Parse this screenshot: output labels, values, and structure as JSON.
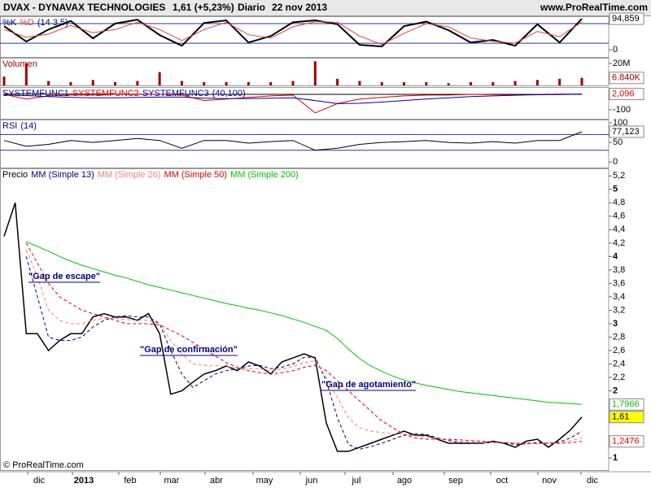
{
  "header": {
    "symbol": "DVAX - DYNAVAX TECHNOLOGIES",
    "quote": "1,61 (+5,23%)",
    "period": "Diario",
    "date": "22 nov 2013",
    "site": "www.ProRealTime.com"
  },
  "footer": "© ProRealTime.com",
  "chart_data": [
    {
      "type": "line",
      "params": "(14 3 5)",
      "ylim": [
        -22,
        100
      ],
      "yticks": [
        100,
        0
      ],
      "levels": [
        80,
        20
      ],
      "series": [
        {
          "name": "%K",
          "color": "#000000",
          "width": 2,
          "values": [
            72,
            25,
            62,
            88,
            35,
            80,
            92,
            45,
            12,
            82,
            90,
            22,
            42,
            84,
            90,
            78,
            15,
            10,
            72,
            86,
            60,
            22,
            30,
            12,
            78,
            22,
            94.859
          ],
          "last_label": "94,859"
        },
        {
          "name": "%D",
          "color": "#e04040",
          "width": 1,
          "values": [
            62,
            38,
            48,
            74,
            52,
            62,
            84,
            62,
            28,
            62,
            84,
            46,
            36,
            70,
            86,
            84,
            42,
            16,
            50,
            80,
            70,
            36,
            26,
            20,
            56,
            40,
            85
          ]
        }
      ]
    },
    {
      "type": "bar",
      "ylim": [
        0,
        24400000
      ],
      "yticks": [
        {
          "value": 20000000,
          "label": "20M"
        }
      ],
      "series": [
        {
          "name": "Volumen",
          "color": "#a00000",
          "values": [
            8000000,
            20000000,
            4000000,
            3000000,
            5000000,
            3000000,
            4000000,
            12000000,
            4000000,
            3000000,
            3000000,
            3000000,
            3000000,
            4000000,
            22000000,
            6000000,
            4000000,
            3000000,
            3000000,
            3000000,
            2000000,
            3000000,
            3000000,
            4000000,
            5000000,
            6000000,
            6840000
          ],
          "last_label": "6.840K"
        }
      ]
    },
    {
      "type": "line",
      "params": "(40,100)",
      "ylim": [
        -158,
        42
      ],
      "yticks": [
        0,
        -100
      ],
      "series": [
        {
          "name": "SYSTEMFUNC1",
          "color": "#000000",
          "width": 1,
          "values": [
            2,
            2,
            1,
            1,
            1,
            1,
            1,
            0,
            0,
            0,
            0,
            0,
            0,
            0,
            0,
            0,
            0,
            0,
            0,
            0,
            0,
            0,
            0,
            0,
            0,
            0,
            0
          ]
        },
        {
          "name": "SYSTEMFUNC2",
          "color": "#e00000",
          "width": 1,
          "values": [
            0,
            -30,
            -10,
            -5,
            -5,
            0,
            0,
            0,
            -5,
            -40,
            -30,
            -20,
            -10,
            -5,
            -120,
            -60,
            -30,
            -20,
            -10,
            -5,
            -5,
            0,
            -2,
            -5,
            0,
            2,
            2.096
          ],
          "last_label": "2,096"
        },
        {
          "name": "SYSTEMFUNC3",
          "color": "#0000a0",
          "width": 1,
          "values": [
            -5,
            -8,
            -15,
            -20,
            -22,
            -22,
            -20,
            -18,
            -18,
            -25,
            -28,
            -27,
            -25,
            -22,
            -40,
            -60,
            -58,
            -50,
            -40,
            -30,
            -22,
            -15,
            -10,
            -6,
            -3,
            -1,
            1
          ]
        }
      ]
    },
    {
      "type": "line",
      "params": "(14)",
      "ylim": [
        -14,
        106
      ],
      "yticks": [
        100,
        50,
        0
      ],
      "levels": [
        70,
        30
      ],
      "series": [
        {
          "name": "RSI",
          "color": "#000000",
          "width": 1,
          "values": [
            55,
            40,
            45,
            55,
            50,
            55,
            60,
            55,
            35,
            55,
            55,
            48,
            52,
            55,
            30,
            35,
            45,
            50,
            52,
            55,
            50,
            48,
            52,
            48,
            55,
            55,
            77.123
          ],
          "last_label": "77,123"
        }
      ]
    },
    {
      "type": "line",
      "ylim": [
        0.82,
        5.3
      ],
      "yticks": [
        {
          "value": 5.2,
          "label": "5,2"
        },
        5,
        {
          "value": 4.8,
          "label": "4,8"
        },
        {
          "value": 4.6,
          "label": "4,6"
        },
        {
          "value": 4.4,
          "label": "4,4"
        },
        {
          "value": 4.2,
          "label": "4,2"
        },
        4,
        {
          "value": 3.8,
          "label": "3,8"
        },
        {
          "value": 3.6,
          "label": "3,6"
        },
        {
          "value": 3.4,
          "label": "3,4"
        },
        {
          "value": 3.2,
          "label": "3,2"
        },
        3,
        {
          "value": 2.8,
          "label": "2,8"
        },
        {
          "value": 2.6,
          "label": "2,6"
        },
        {
          "value": 2.4,
          "label": "2,4"
        },
        {
          "value": 2.2,
          "label": "2,2"
        },
        2,
        {
          "value": 1.8,
          "label": "1,8"
        },
        1
      ],
      "xtick_labels": [
        "dic",
        "2013",
        "feb",
        "mar",
        "abr",
        "may",
        "jun",
        "jul",
        "ago",
        "sep",
        "oct",
        "nov",
        "dic"
      ],
      "annotations": [
        "\"Gap de escape\"",
        "\"Gap de confirmación\"",
        "\"Gap de agotamiento\""
      ],
      "series": [
        {
          "name": "Precio",
          "color": "#000000",
          "width": 1.5,
          "values": [
            4.3,
            4.8,
            2.85,
            2.85,
            2.6,
            2.75,
            2.85,
            2.85,
            3.1,
            3.15,
            3.1,
            3.1,
            3.05,
            3.15,
            2.85,
            1.95,
            2.0,
            2.13,
            2.25,
            2.3,
            2.37,
            2.3,
            2.43,
            2.37,
            2.25,
            2.43,
            2.49,
            2.55,
            2.49,
            1.52,
            1.1,
            1.1,
            1.16,
            1.22,
            1.28,
            1.34,
            1.4,
            1.34,
            1.34,
            1.28,
            1.22,
            1.22,
            1.22,
            1.22,
            1.25,
            1.22,
            1.16,
            1.25,
            1.28,
            1.16,
            1.28,
            1.42,
            1.61
          ],
          "last_label": "1,61",
          "label_fill": "#ffff00"
        },
        {
          "name": "MM (Simple 13)",
          "color": "#000080",
          "width": 1,
          "dashed": true,
          "values": [
            null,
            null,
            4.0,
            3.4,
            2.8,
            2.75,
            2.75,
            2.8,
            2.95,
            3.05,
            3.1,
            3.12,
            3.1,
            3.1,
            3.0,
            2.6,
            2.25,
            2.05,
            2.15,
            2.25,
            2.3,
            2.33,
            2.37,
            2.38,
            2.33,
            2.35,
            2.4,
            2.5,
            2.5,
            2.15,
            1.6,
            1.2,
            1.13,
            1.17,
            1.22,
            1.28,
            1.34,
            1.36,
            1.35,
            1.3,
            1.26,
            1.23,
            1.22,
            1.22,
            1.23,
            1.23,
            1.2,
            1.21,
            1.23,
            1.22,
            1.24,
            1.3,
            1.4
          ]
        },
        {
          "name": "MM (Simple 26)",
          "color": "#f08080",
          "width": 1,
          "dashed": true,
          "values": [
            null,
            null,
            4.1,
            3.7,
            3.2,
            3.05,
            3.0,
            3.0,
            3.05,
            3.08,
            3.08,
            3.06,
            3.05,
            3.05,
            3.0,
            2.75,
            2.55,
            2.4,
            2.38,
            2.38,
            2.36,
            2.34,
            2.33,
            2.33,
            2.3,
            2.32,
            2.36,
            2.42,
            2.45,
            2.2,
            1.9,
            1.6,
            1.45,
            1.4,
            1.38,
            1.36,
            1.35,
            1.33,
            1.32,
            1.29,
            1.27,
            1.25,
            1.24,
            1.23,
            1.23,
            1.23,
            1.21,
            1.21,
            1.22,
            1.22,
            1.23,
            1.26,
            1.3
          ]
        },
        {
          "name": "MM (Simple 50)",
          "color": "#e00000",
          "width": 1,
          "dashed": true,
          "values": [
            null,
            null,
            4.2,
            3.9,
            3.6,
            3.4,
            3.3,
            3.2,
            3.15,
            3.1,
            3.05,
            3.0,
            3.0,
            3.0,
            2.98,
            2.9,
            2.82,
            2.72,
            2.62,
            2.52,
            2.42,
            2.35,
            2.3,
            2.27,
            2.25,
            2.27,
            2.3,
            2.35,
            2.38,
            2.3,
            2.15,
            2.0,
            1.85,
            1.7,
            1.55,
            1.45,
            1.35,
            1.3,
            1.28,
            1.28,
            1.28,
            1.27,
            1.26,
            1.25,
            1.24,
            1.23,
            1.22,
            1.22,
            1.22,
            1.22,
            1.22,
            1.23,
            1.2476
          ],
          "last_label": "1,2476"
        },
        {
          "name": "MM (Simple 200)",
          "color": "#00c000",
          "width": 1,
          "values": [
            null,
            null,
            4.22,
            4.15,
            4.08,
            4.0,
            3.93,
            3.87,
            3.82,
            3.77,
            3.72,
            3.68,
            3.63,
            3.58,
            3.54,
            3.5,
            3.46,
            3.42,
            3.38,
            3.34,
            3.3,
            3.27,
            3.23,
            3.2,
            3.16,
            3.12,
            3.07,
            3.02,
            2.96,
            2.9,
            2.78,
            2.62,
            2.48,
            2.37,
            2.29,
            2.22,
            2.16,
            2.12,
            2.08,
            2.05,
            2.02,
            1.99,
            1.97,
            1.95,
            1.93,
            1.91,
            1.89,
            1.87,
            1.85,
            1.83,
            1.82,
            1.81,
            1.7966
          ],
          "last_label": "1,7966"
        }
      ]
    }
  ]
}
